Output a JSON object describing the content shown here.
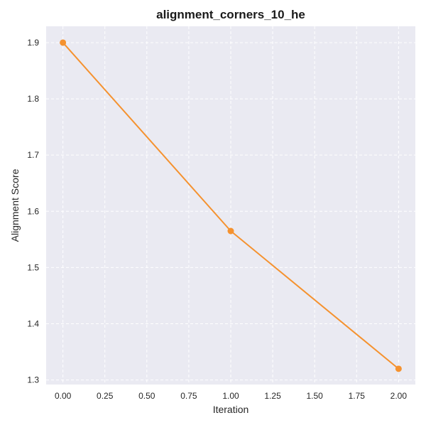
{
  "chart_data": {
    "type": "line",
    "title": "alignment_corners_10_he",
    "xlabel": "Iteration",
    "ylabel": "Alignment Score",
    "x": [
      0,
      1,
      2
    ],
    "series": [
      {
        "values": [
          1.9,
          1.565,
          1.32
        ],
        "color": "#f5922f"
      }
    ],
    "xlim": [
      -0.1,
      2.1
    ],
    "ylim": [
      1.292,
      1.929
    ],
    "xticks": [
      0,
      0.25,
      0.5,
      0.75,
      1,
      1.25,
      1.5,
      1.75,
      2
    ],
    "xtick_labels": [
      "0.00",
      "0.25",
      "0.50",
      "0.75",
      "1.00",
      "1.25",
      "1.50",
      "1.75",
      "2.00"
    ],
    "yticks": [
      1.3,
      1.4,
      1.5,
      1.6,
      1.7,
      1.8,
      1.9
    ],
    "ytick_labels": [
      "1.3",
      "1.4",
      "1.5",
      "1.6",
      "1.7",
      "1.8",
      "1.9"
    ],
    "grid": true,
    "background": "#eaeaf2",
    "grid_color": "#ffffff"
  }
}
